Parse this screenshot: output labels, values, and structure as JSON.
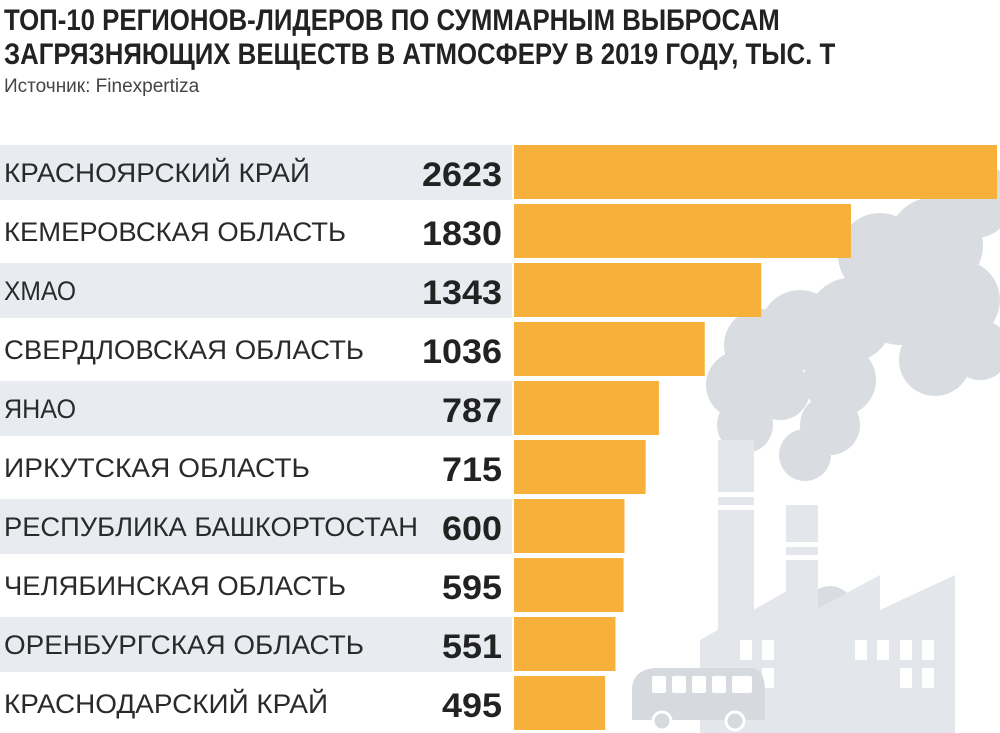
{
  "title_lines": [
    "ТОП-10 РЕГИОНОВ-ЛИДЕРОВ ПО СУММАРНЫМ ВЫБРОСАМ",
    "ЗАГРЯЗНЯЮЩИХ ВЕЩЕСТВ В АТМОСФЕРУ В 2019 ГОДУ, ТЫС. Т"
  ],
  "source": "Источник: Finexpertiza",
  "chart_data": {
    "type": "bar",
    "orientation": "horizontal",
    "title": "ТОП-10 РЕГИОНОВ-ЛИДЕРОВ ПО СУММАРНЫМ ВЫБРОСАМ ЗАГРЯЗНЯЮЩИХ ВЕЩЕСТВ В АТМОСФЕРУ В 2019 ГОДУ, ТЫС. Т",
    "categories": [
      "КРАСНОЯРСКИЙ КРАЙ",
      "КЕМЕРОВСКАЯ ОБЛАСТЬ",
      "ХМАО",
      "СВЕРДЛОВСКАЯ ОБЛАСТЬ",
      "ЯНАО",
      "ИРКУТСКАЯ ОБЛАСТЬ",
      "РЕСПУБЛИКА БАШКОРТОСТАН",
      "ЧЕЛЯБИНСКАЯ ОБЛАСТЬ",
      "ОРЕНБУРГСКАЯ ОБЛАСТЬ",
      "КРАСНОДАРСКИЙ КРАЙ"
    ],
    "values": [
      2623,
      1830,
      1343,
      1036,
      787,
      715,
      600,
      595,
      551,
      495
    ],
    "value_labels": [
      "2623",
      "1830",
      "1343",
      "1036",
      "787",
      "715",
      "600",
      "595",
      "551",
      "495"
    ],
    "xlim": [
      0,
      2623
    ],
    "grid": false,
    "legend": "none",
    "colors": {
      "bar": "#F7B13A",
      "row_band": "#E8ECF1",
      "smoke": "#D9DCE1",
      "factory": "#E3E6EA",
      "text": "#222222"
    }
  },
  "illustration_icons": [
    "smoke-plume-icon",
    "factory-chimneys-icon",
    "bus-icon"
  ]
}
